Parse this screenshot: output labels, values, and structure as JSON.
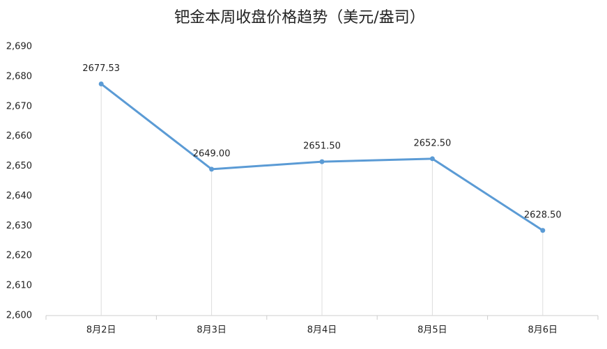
{
  "chart_data": {
    "type": "line",
    "title": "钯金本周收盘价格趋势（美元/盎司）",
    "categories": [
      "8月2日",
      "8月3日",
      "8月4日",
      "8月5日",
      "8月6日"
    ],
    "values": [
      2677.53,
      2649.0,
      2651.5,
      2652.5,
      2628.5
    ],
    "value_labels": [
      "2677.53",
      "2649.00",
      "2651.50",
      "2652.50",
      "2628.50"
    ],
    "color": "#5b9bd5",
    "ylim": [
      2600,
      2690
    ],
    "yticks": [
      {
        "value": 2600,
        "label": "2,600"
      },
      {
        "value": 2610,
        "label": "2,610"
      },
      {
        "value": 2620,
        "label": "2,620"
      },
      {
        "value": 2630,
        "label": "2,630"
      },
      {
        "value": 2640,
        "label": "2,640"
      },
      {
        "value": 2650,
        "label": "2,650"
      },
      {
        "value": 2660,
        "label": "2,660"
      },
      {
        "value": 2670,
        "label": "2,670"
      },
      {
        "value": 2680,
        "label": "2,680"
      },
      {
        "value": 2690,
        "label": "2,690"
      }
    ],
    "grid": false
  }
}
